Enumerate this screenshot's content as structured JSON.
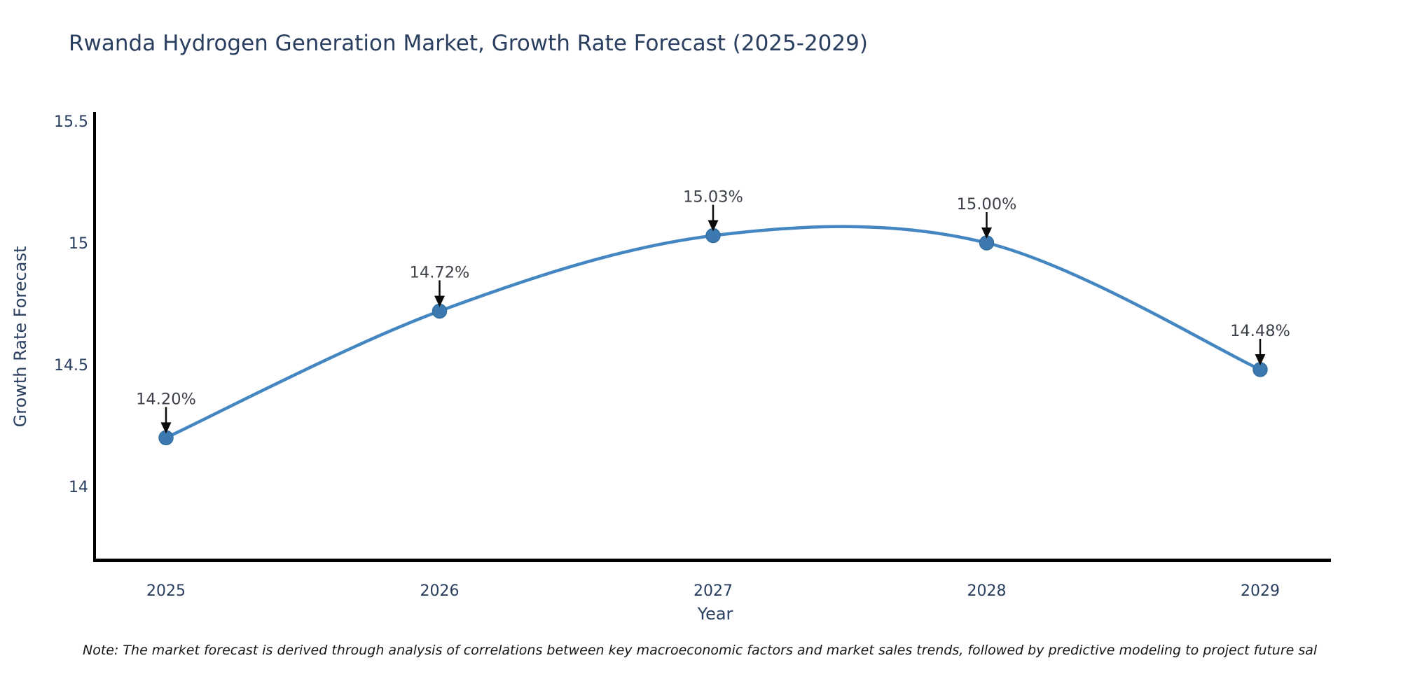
{
  "title": "Rwanda Hydrogen Generation Market, Growth Rate Forecast (2025-2029)",
  "note": "Note: The market forecast is derived through analysis of correlations between key macroeconomic factors and market sales trends, followed by predictive modeling to project future sal",
  "chart_data": {
    "type": "line",
    "title": "Rwanda Hydrogen Generation Market, Growth Rate Forecast (2025-2029)",
    "xlabel": "Year",
    "ylabel": "Growth Rate Forecast",
    "x": [
      "2025",
      "2026",
      "2027",
      "2028",
      "2029"
    ],
    "values": [
      14.2,
      14.72,
      15.03,
      15.0,
      14.48
    ],
    "point_labels": [
      "14.20%",
      "14.72%",
      "15.03%",
      "15.00%",
      "14.48%"
    ],
    "y_ticks": [
      "15.5",
      "15",
      "14.5",
      "14"
    ],
    "y_tick_values": [
      15.5,
      15,
      14.5,
      14
    ],
    "ylim": [
      13.7,
      15.53
    ],
    "grid": false,
    "legend": false,
    "annotation_style": "down-arrow-to-point",
    "colors": {
      "line": "#4386c1",
      "marker": "#3c79b0",
      "marker_edge": "#336e9e",
      "axis_spine": "#000000",
      "arrow": "#0b0b0b",
      "tick_text": "#2a3f5f",
      "annotation_text": "#3b3f47",
      "title_text": "#2a3f5f",
      "background": "#ffffff"
    }
  }
}
